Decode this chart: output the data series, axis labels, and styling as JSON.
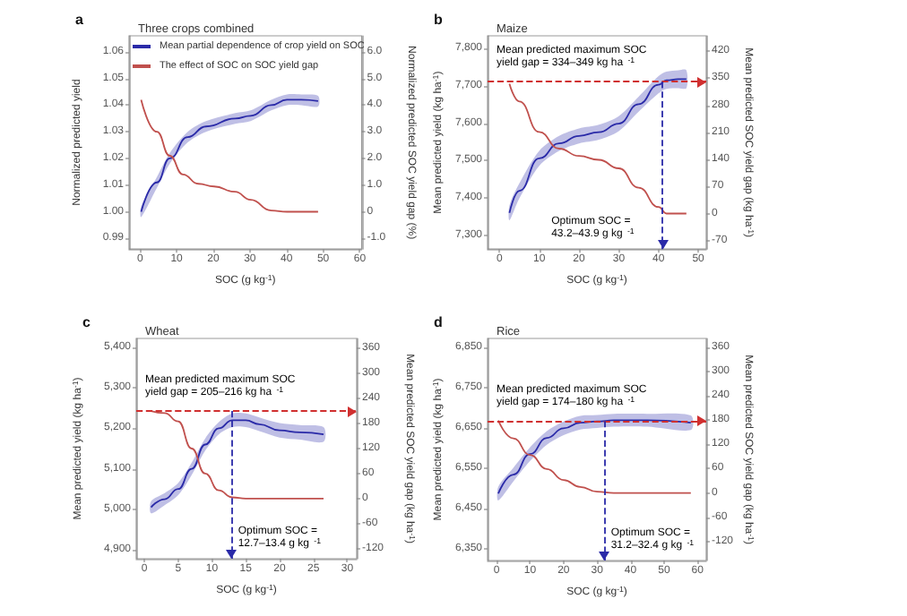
{
  "chart_data": [
    {
      "type": "line",
      "title": "Three crops combined",
      "xlabel": "SOC (g kg$^{-1}$)",
      "ylabel": "Normalized predicted yield",
      "y2label": "Normalized predicted SOC yield gap (%)",
      "annotations": [
        "a"
      ],
      "legend": "top left",
      "xlim": [
        -3,
        60.5
      ],
      "xticks": [
        0,
        10,
        20,
        30,
        40,
        50,
        60
      ],
      "ylim": [
        0.986,
        1.066
      ],
      "yticks": [
        0.99,
        {
          "value": 1,
          "label": "1.00"
        },
        1.01,
        1.02,
        1.03,
        1.04,
        1.05,
        1.06
      ],
      "y2lim": [
        -1.4,
        6.6
      ],
      "y2ticks": [
        {
          "value": -1,
          "label": "-1.0"
        },
        0,
        {
          "value": 1,
          "label": "1.0"
        },
        {
          "value": 2,
          "label": "2.0"
        },
        {
          "value": 3,
          "label": "3.0"
        },
        {
          "value": 4,
          "label": "4.0"
        },
        {
          "value": 5,
          "label": "5.0"
        },
        {
          "value": 6,
          "label": "6.0"
        }
      ],
      "series": [
        {
          "name": "Mean partial dependence of crop yield on SOC",
          "color": "#2a2aa8",
          "x": [
            0.3,
            4.6,
            8.1,
            13,
            18,
            26,
            30.2,
            35.8,
            40.1,
            44,
            48.6
          ],
          "values": [
            1.0,
            1.011,
            1.02,
            1.028,
            1.032,
            1.035,
            1.036,
            1.04,
            1.042,
            1.042,
            1.0415
          ],
          "lower": [
            0.998,
            1.009,
            1.018,
            1.026,
            1.03,
            1.033,
            1.034,
            1.038,
            1.04,
            1.04,
            1.0395
          ],
          "upper": [
            1.002,
            1.013,
            1.022,
            1.03,
            1.034,
            1.037,
            1.038,
            1.042,
            1.044,
            1.044,
            1.0435
          ]
        },
        {
          "name": "The effect of SOC on SOC yield gap",
          "color": "#c0504d",
          "axis": "y2",
          "x": [
            0.3,
            4.6,
            8.1,
            11.7,
            15.9,
            20.2,
            25.9,
            30.2,
            35.8,
            40.1,
            48.6
          ],
          "values": [
            4.2,
            3.0,
            2.1,
            1.4,
            1.05,
            0.95,
            0.75,
            0.45,
            0.05,
            0,
            0
          ]
        }
      ]
    },
    {
      "type": "line",
      "title": "Maize",
      "xlabel": "SOC (g kg$^{-1}$)",
      "ylabel": "Mean predicted yield (kg ha$^{-1}$)",
      "y2label": "Mean predicted SOC yield gap (kg ha$^{-1}$)",
      "annotations": [
        "b",
        "Mean predicted maximum SOC yield gap = 334–349 kg ha$^{-1}$",
        "Optimum SOC = 43.2–43.9 g kg$^{-1}$"
      ],
      "xlim": [
        -3,
        52
      ],
      "xticks": [
        0,
        10,
        20,
        30,
        40,
        50
      ],
      "ylim": [
        7263,
        7834
      ],
      "yticks": [
        {
          "value": 7300,
          "label": "7,300"
        },
        {
          "value": 7400,
          "label": "7,400"
        },
        {
          "value": 7500,
          "label": "7,500"
        },
        {
          "value": 7600,
          "label": "7,600"
        },
        {
          "value": 7700,
          "label": "7,700"
        },
        {
          "value": 7800,
          "label": "7,800"
        }
      ],
      "y2lim": [
        -92,
        460
      ],
      "y2ticks": [
        -70,
        0,
        70,
        140,
        210,
        280,
        350,
        420
      ],
      "series": [
        {
          "color": "#2a2aa8",
          "x": [
            2.5,
            5,
            10,
            15,
            20,
            25,
            30,
            35,
            40,
            42,
            45,
            47
          ],
          "values": [
            7360,
            7419,
            7506,
            7546,
            7566,
            7576,
            7599,
            7651,
            7703,
            7715,
            7718,
            7718
          ],
          "lower": [
            7340,
            7399,
            7486,
            7526,
            7546,
            7556,
            7579,
            7631,
            7680,
            7692,
            7694,
            7694
          ],
          "upper": [
            7380,
            7439,
            7526,
            7566,
            7586,
            7596,
            7619,
            7671,
            7726,
            7738,
            7742,
            7742
          ]
        },
        {
          "color": "#c0504d",
          "axis": "y2",
          "x": [
            2.5,
            5,
            10,
            15,
            20,
            25,
            30,
            35,
            40,
            42,
            47
          ],
          "values": [
            336,
            290,
            211,
            168,
            149,
            139,
            117,
            67,
            17,
            0,
            0
          ]
        }
      ],
      "ref_lines": [
        {
          "axis": "y2",
          "value": 341,
          "color": "#d03030",
          "line_style": "dashed"
        },
        {
          "axis": "x",
          "value": 41,
          "color": "#2a2aa8",
          "line_style": "dashed"
        }
      ]
    },
    {
      "type": "line",
      "title": "Wheat",
      "xlabel": "SOC (g kg$^{-1}$)",
      "ylabel": "Mean predicted yield (kg ha$^{-1}$)",
      "y2label": "Mean predicted SOC yield gap (kg ha$^{-1}$)",
      "annotations": [
        "c",
        "Mean predicted maximum SOC yield gap = 205–216 kg ha$^{-1}$",
        "Optimum SOC = 12.7–13.4 g kg$^{-1}$"
      ],
      "xlim": [
        -1.2,
        31.4
      ],
      "xticks": [
        0,
        5,
        10,
        15,
        20,
        25,
        30
      ],
      "ylim": [
        4878,
        5422
      ],
      "yticks": [
        {
          "value": 4900,
          "label": "4,900"
        },
        {
          "value": 5000,
          "label": "5,000"
        },
        {
          "value": 5100,
          "label": "5,100"
        },
        {
          "value": 5200,
          "label": "5,200"
        },
        {
          "value": 5300,
          "label": "5,300"
        },
        {
          "value": 5400,
          "label": "5,400"
        }
      ],
      "y2lim": [
        -144,
        384
      ],
      "y2ticks": [
        -120,
        -60,
        0,
        60,
        120,
        180,
        240,
        300,
        360
      ],
      "series": [
        {
          "color": "#2a2aa8",
          "x": [
            1,
            3,
            5,
            7,
            9,
            11,
            13,
            15,
            17,
            20,
            23,
            26.5
          ],
          "values": [
            5005,
            5025,
            5050,
            5100,
            5160,
            5200,
            5220,
            5220,
            5210,
            5195,
            5190,
            5185
          ],
          "lower": [
            4990,
            5010,
            5035,
            5085,
            5145,
            5185,
            5203,
            5203,
            5193,
            5177,
            5172,
            5167
          ],
          "upper": [
            5020,
            5040,
            5065,
            5115,
            5175,
            5215,
            5237,
            5237,
            5227,
            5213,
            5208,
            5203
          ]
        },
        {
          "color": "#c0504d",
          "axis": "y2",
          "x": [
            1,
            3,
            5,
            7,
            9,
            11,
            13,
            15,
            26.5
          ],
          "values": [
            210,
            205,
            185,
            120,
            60,
            20,
            3,
            0,
            0
          ]
        }
      ],
      "ref_lines": [
        {
          "axis": "y2",
          "value": 210,
          "color": "#d03030",
          "line_style": "dashed"
        },
        {
          "axis": "x",
          "value": 12.8,
          "color": "#2a2aa8",
          "line_style": "dashed"
        }
      ]
    },
    {
      "type": "line",
      "title": "Rice",
      "xlabel": "SOC (g kg$^{-1}$)",
      "ylabel": "Mean predicted yield (kg ha$^{-1}$)",
      "y2label": "Mean predicted SOC yield gap (kg ha$^{-1}$)",
      "annotations": [
        "d",
        "Mean predicted maximum SOC yield gap = 174–180 kg ha$^{-1}$",
        "Optimum SOC = 31.2–32.4 g kg$^{-1}$"
      ],
      "xlim": [
        -2.7,
        62.6
      ],
      "xticks": [
        0,
        10,
        20,
        30,
        40,
        50,
        60
      ],
      "ylim": [
        6321,
        6872
      ],
      "yticks": [
        {
          "value": 6350,
          "label": "6,350"
        },
        {
          "value": 6450,
          "label": "6,450"
        },
        {
          "value": 6550,
          "label": "6,550"
        },
        {
          "value": 6650,
          "label": "6,650"
        },
        {
          "value": 6750,
          "label": "6,750"
        },
        {
          "value": 6850,
          "label": "6,850"
        }
      ],
      "y2lim": [
        -167,
        382
      ],
      "y2ticks": [
        -120,
        -60,
        0,
        60,
        120,
        180,
        240,
        300,
        360
      ],
      "series": [
        {
          "color": "#2a2aa8",
          "x": [
            0.5,
            5,
            10,
            15,
            20,
            25,
            30,
            35,
            45,
            58
          ],
          "values": [
            6487,
            6534,
            6585,
            6625,
            6649,
            6663,
            6666,
            6669,
            6669,
            6663
          ],
          "lower": [
            6470,
            6517,
            6568,
            6608,
            6632,
            6646,
            6650,
            6653,
            6653,
            6645
          ],
          "upper": [
            6504,
            6551,
            6602,
            6642,
            6666,
            6680,
            6682,
            6685,
            6685,
            6681
          ]
        },
        {
          "color": "#c0504d",
          "axis": "y2",
          "x": [
            0.5,
            5,
            10,
            15,
            20,
            25,
            30,
            35,
            58
          ],
          "values": [
            179,
            135,
            94,
            59,
            32,
            15,
            3,
            0,
            0
          ]
        }
      ],
      "ref_lines": [
        {
          "axis": "y2",
          "value": 178,
          "color": "#d03030",
          "line_style": "dashed"
        },
        {
          "axis": "x",
          "value": 32,
          "color": "#2a2aa8",
          "line_style": "dashed"
        }
      ]
    }
  ]
}
